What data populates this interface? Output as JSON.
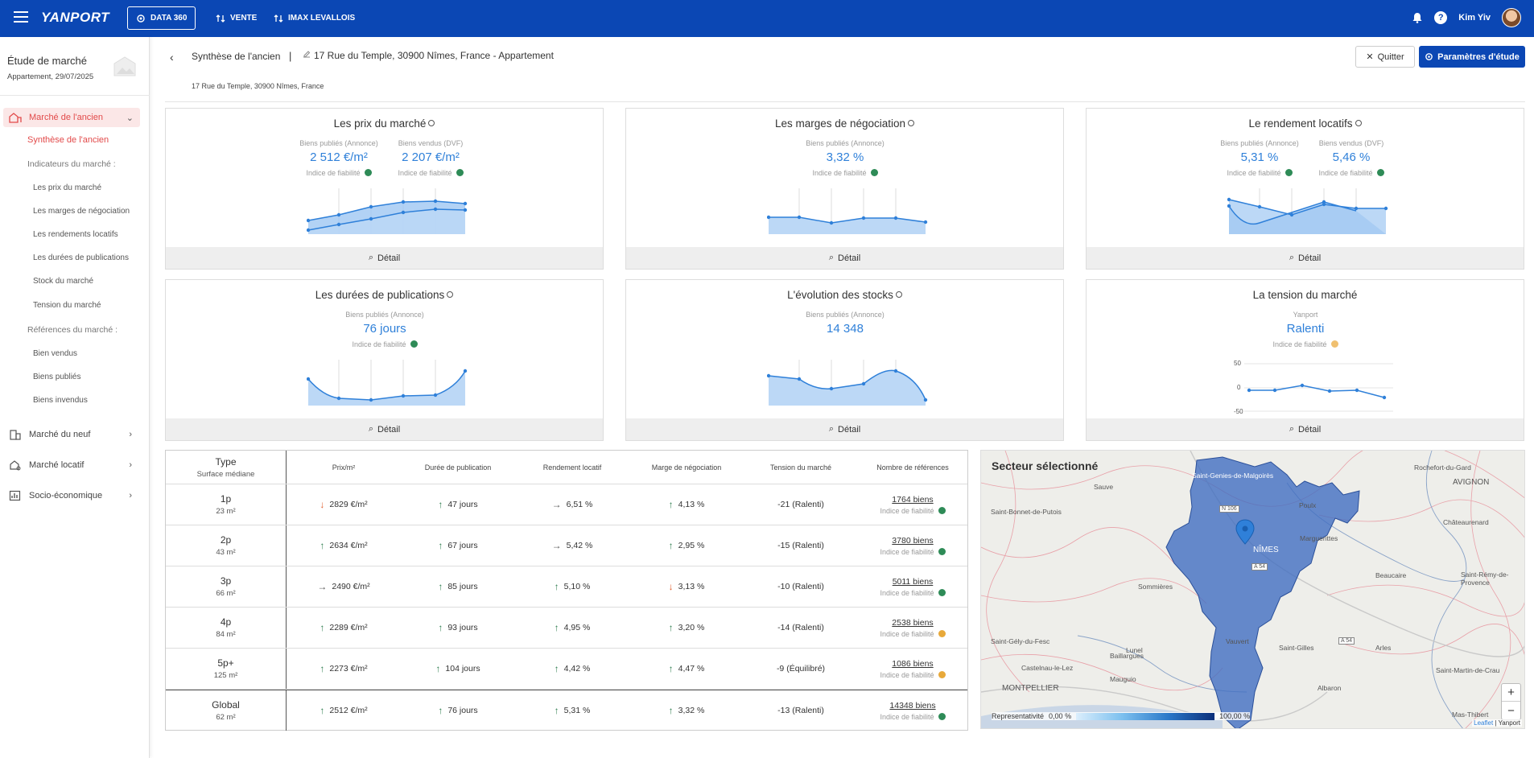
{
  "topbar": {
    "logo": "YANPORT",
    "nav": [
      "DATA 360",
      "VENTE",
      "IMAX LEVALLOIS"
    ],
    "user": "Kim Yiv"
  },
  "sidebar": {
    "title": "Étude de marché",
    "subtitle": "Appartement, 29/07/2025",
    "sections": [
      {
        "label": "Marché de l'ancien"
      },
      {
        "label": "Marché du neuf"
      },
      {
        "label": "Marché locatif"
      },
      {
        "label": "Socio-économique"
      }
    ],
    "synthese": "Synthèse de l'ancien",
    "indicateurs_heading": "Indicateurs du marché :",
    "indicateurs": [
      "Les prix du marché",
      "Les marges de négociation",
      "Les rendements locatifs",
      "Les durées de publications",
      "Stock du marché",
      "Tension du marché"
    ],
    "references_heading": "Références du marché :",
    "references": [
      "Bien vendus",
      "Biens publiés",
      "Biens invendus"
    ]
  },
  "header": {
    "crumb": "Synthèse de l'ancien",
    "separator": "|",
    "address": "17 Rue du Temple, 30900 Nîmes, France - Appartement",
    "sub_address": "17 Rue du Temple, 30900 Nîmes, France",
    "quit": "Quitter",
    "params": "Paramètres d'étude"
  },
  "cards": {
    "prix": {
      "title": "Les prix du marché",
      "l1": "Biens publiés (Annonce)",
      "v1": "2 512 €/m²",
      "r1": "Indice de fiabilité",
      "l2": "Biens vendus (DVF)",
      "v2": "2 207 €/m²",
      "r2": "Indice de fiabilité"
    },
    "marges": {
      "title": "Les marges de négociation",
      "l1": "Biens publiés (Annonce)",
      "v1": "3,32 %",
      "r1": "Indice de fiabilité"
    },
    "rendement": {
      "title": "Le rendement locatifs",
      "l1": "Biens publiés (Annonce)",
      "v1": "5,31 %",
      "r1": "Indice de fiabilité",
      "l2": "Biens vendus (DVF)",
      "v2": "5,46 %",
      "r2": "Indice de fiabilité"
    },
    "durees": {
      "title": "Les durées de publications",
      "l1": "Biens publiés (Annonce)",
      "v1": "76 jours",
      "r1": "Indice de fiabilité"
    },
    "stocks": {
      "title": "L'évolution des stocks",
      "l1": "Biens publiés (Annonce)",
      "v1": "14 348"
    },
    "tension": {
      "title": "La tension du marché",
      "l1": "Yanport",
      "v1": "Ralenti",
      "r1": "Indice de fiabilité",
      "y_ticks": [
        "50",
        "0",
        "-50"
      ]
    },
    "detail": "Détail"
  },
  "colors": {
    "green": "#2e8b57",
    "orange": "#e8a93a",
    "blue": "#2f80d9",
    "brand": "#0b47b4"
  },
  "table": {
    "headers": {
      "type": "Type",
      "surface": "Surface médiane",
      "prix": "Prix/m²",
      "duree": "Durée de publication",
      "rendement": "Rendement locatif",
      "marge": "Marge de négociation",
      "tension": "Tension du marché",
      "refs": "Nombre de références"
    },
    "fiab": "Indice de fiabilité",
    "rows": [
      {
        "type": "1p",
        "surface": "23 m²",
        "prix": "2829 €/m²",
        "duree": "47 jours",
        "rendement": "6,51 %",
        "marge": "4,13 %",
        "tension": "-21 (Ralenti)",
        "refs": "1764 biens"
      },
      {
        "type": "2p",
        "surface": "43 m²",
        "prix": "2634 €/m²",
        "duree": "67 jours",
        "rendement": "5,42 %",
        "marge": "2,95 %",
        "tension": "-15 (Ralenti)",
        "refs": "3780 biens"
      },
      {
        "type": "3p",
        "surface": "66 m²",
        "prix": "2490 €/m²",
        "duree": "85 jours",
        "rendement": "5,10 %",
        "marge": "3,13 %",
        "tension": "-10 (Ralenti)",
        "refs": "5011 biens"
      },
      {
        "type": "4p",
        "surface": "84 m²",
        "prix": "2289 €/m²",
        "duree": "93 jours",
        "rendement": "4,95 %",
        "marge": "3,20 %",
        "tension": "-14 (Ralenti)",
        "refs": "2538 biens"
      },
      {
        "type": "5p+",
        "surface": "125 m²",
        "prix": "2273 €/m²",
        "duree": "104 jours",
        "rendement": "4,42 %",
        "marge": "4,47 %",
        "tension": "-9 (Équilibré)",
        "refs": "1086 biens"
      },
      {
        "type": "Global",
        "surface": "62 m²",
        "prix": "2512 €/m²",
        "duree": "76 jours",
        "rendement": "5,31 %",
        "marge": "3,32 %",
        "tension": "-13 (Ralenti)",
        "refs": "14348 biens"
      }
    ]
  },
  "map": {
    "title": "Secteur sélectionné",
    "legend_label": "Representativité",
    "legend_min": "0,00 %",
    "legend_max": "100,00 %",
    "attribution_link": "Leaflet",
    "attribution_rest": "| Yanport",
    "labels": [
      "Saint-Genies-de-Malgoirès",
      "Sauve",
      "Saint-Bonnet-de-Putois",
      "Poulx",
      "Rochefort-du-Gard",
      "AVIGNON",
      "Châteaurenard",
      "NÎMES",
      "Marguerittes",
      "Sommières",
      "Beaucaire",
      "Saint-Rémy-de-Provence",
      "Saint-Gély-du-Fesc",
      "Lunel",
      "Vauvert",
      "Saint-Gilles",
      "Arles",
      "Castelnau-le-Lez",
      "Mauguio",
      "MONTPELLIER",
      "Albaron",
      "Saint-Martin-de-Crau",
      "Mas-Thibert",
      "Baillargues",
      "N 106",
      "A 54",
      "A 54"
    ]
  }
}
